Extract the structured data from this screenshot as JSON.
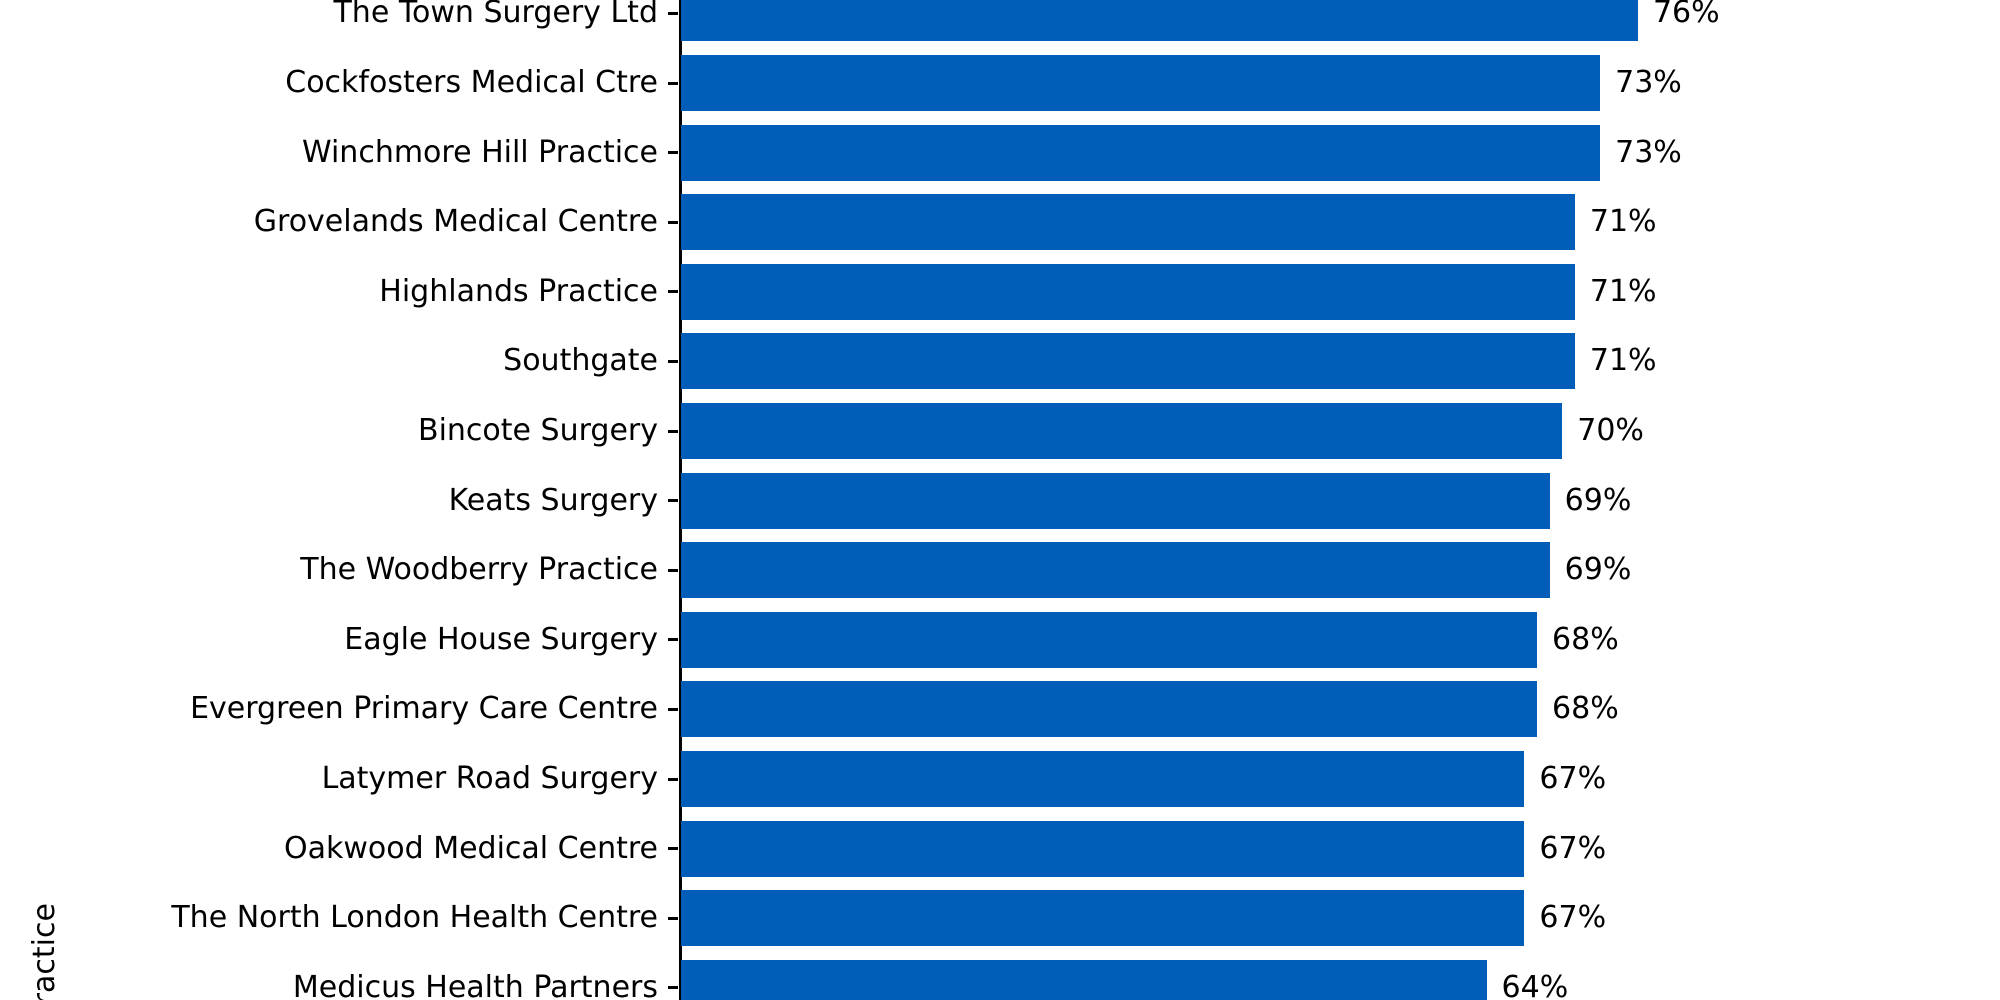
{
  "chart_data": {
    "type": "bar",
    "orientation": "horizontal",
    "title": "",
    "xlabel": "",
    "ylabel": "Practice",
    "xlim": [
      0,
      100
    ],
    "grid": false,
    "legend": "none",
    "bar_color": "#005EB8",
    "axis_color": "#000000",
    "text_color": "#000000",
    "background_color": "#FFFFFF",
    "categories": [
      "The Town Surgery Ltd",
      "Cockfosters Medical Ctre",
      "Winchmore Hill Practice",
      "Grovelands Medical Centre",
      "Highlands Practice",
      "Southgate",
      "Bincote Surgery",
      "Keats Surgery",
      "The Woodberry Practice",
      "Eagle House Surgery",
      "Evergreen Primary Care Centre",
      "Latymer Road Surgery",
      "Oakwood Medical Centre",
      "The North London Health Centre",
      "Medicus Health Partners"
    ],
    "values": [
      76,
      73,
      73,
      71,
      71,
      71,
      70,
      69,
      69,
      68,
      68,
      67,
      67,
      67,
      64
    ],
    "value_labels": [
      "76%",
      "73%",
      "73%",
      "71%",
      "71%",
      "71%",
      "70%",
      "69%",
      "69%",
      "68%",
      "68%",
      "67%",
      "67%",
      "67%",
      "64%"
    ]
  }
}
